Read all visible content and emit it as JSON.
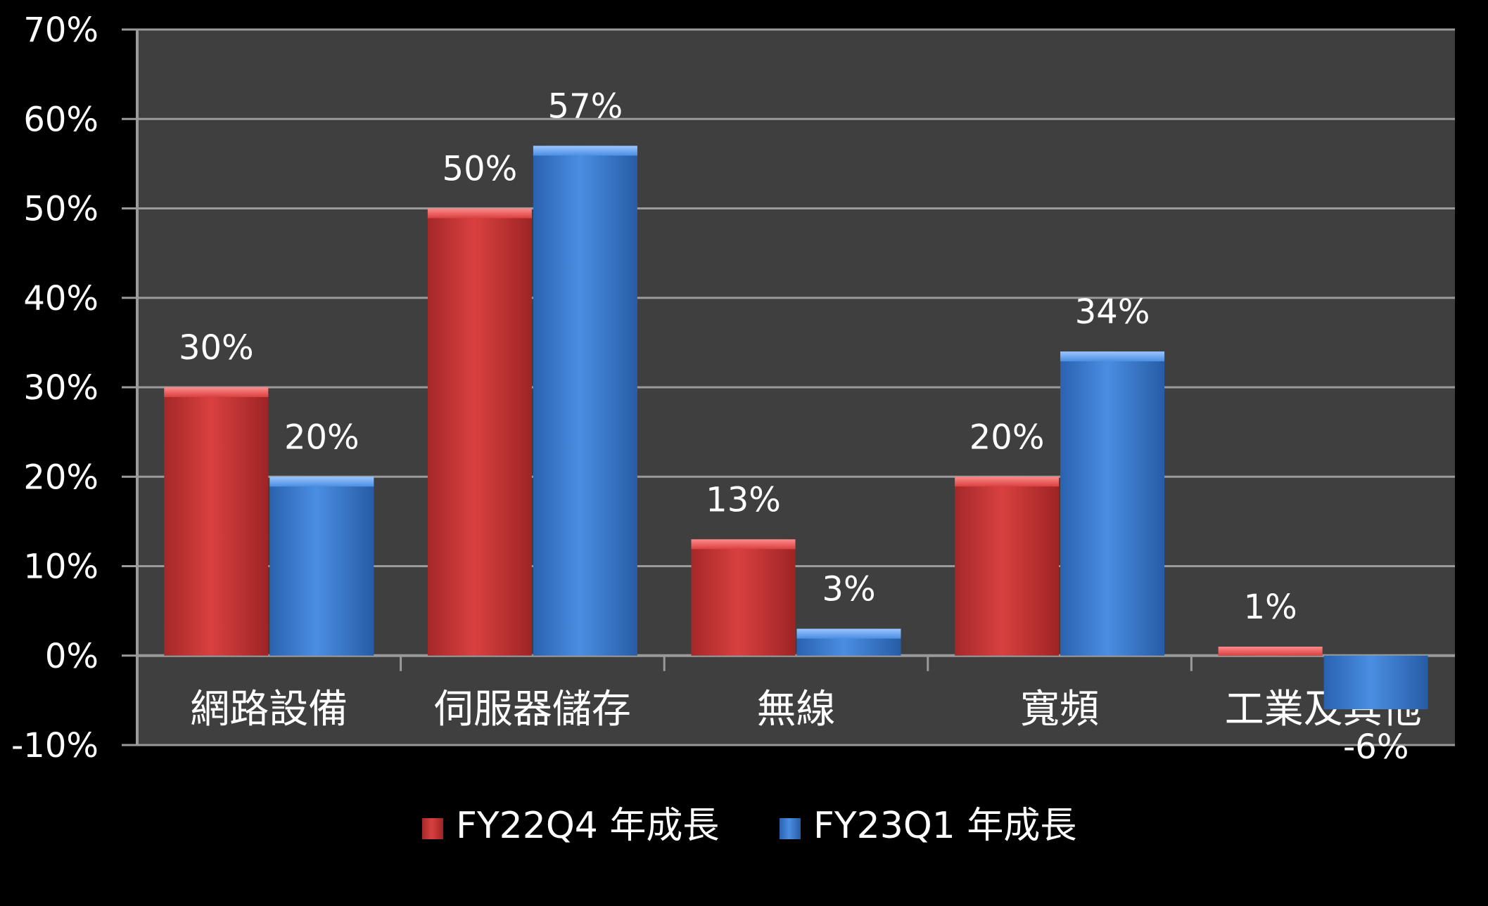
{
  "chart_data": {
    "type": "bar",
    "categories": [
      "網路設備",
      "伺服器儲存",
      "無線",
      "寬頻",
      "工業及其他"
    ],
    "series": [
      {
        "name": "FY22Q4 年成長",
        "values": [
          30,
          50,
          13,
          20,
          1
        ],
        "labels": [
          "30%",
          "50%",
          "13%",
          "20%",
          "1%"
        ],
        "color": "#d43a3a"
      },
      {
        "name": "FY23Q1 年成長",
        "values": [
          20,
          57,
          3,
          34,
          -6
        ],
        "labels": [
          "20%",
          "57%",
          "3%",
          "34%",
          "-6%"
        ],
        "color": "#3a7ed4"
      }
    ],
    "ylim": [
      -10,
      70
    ],
    "yticks": [
      -10,
      0,
      10,
      20,
      30,
      40,
      50,
      60,
      70
    ],
    "ytick_labels": [
      "-10%",
      "0%",
      "10%",
      "20%",
      "30%",
      "40%",
      "50%",
      "60%",
      "70%"
    ],
    "grid": true,
    "legend": "bottom",
    "background": "#000000",
    "plot_background": "#3f3f3f"
  }
}
